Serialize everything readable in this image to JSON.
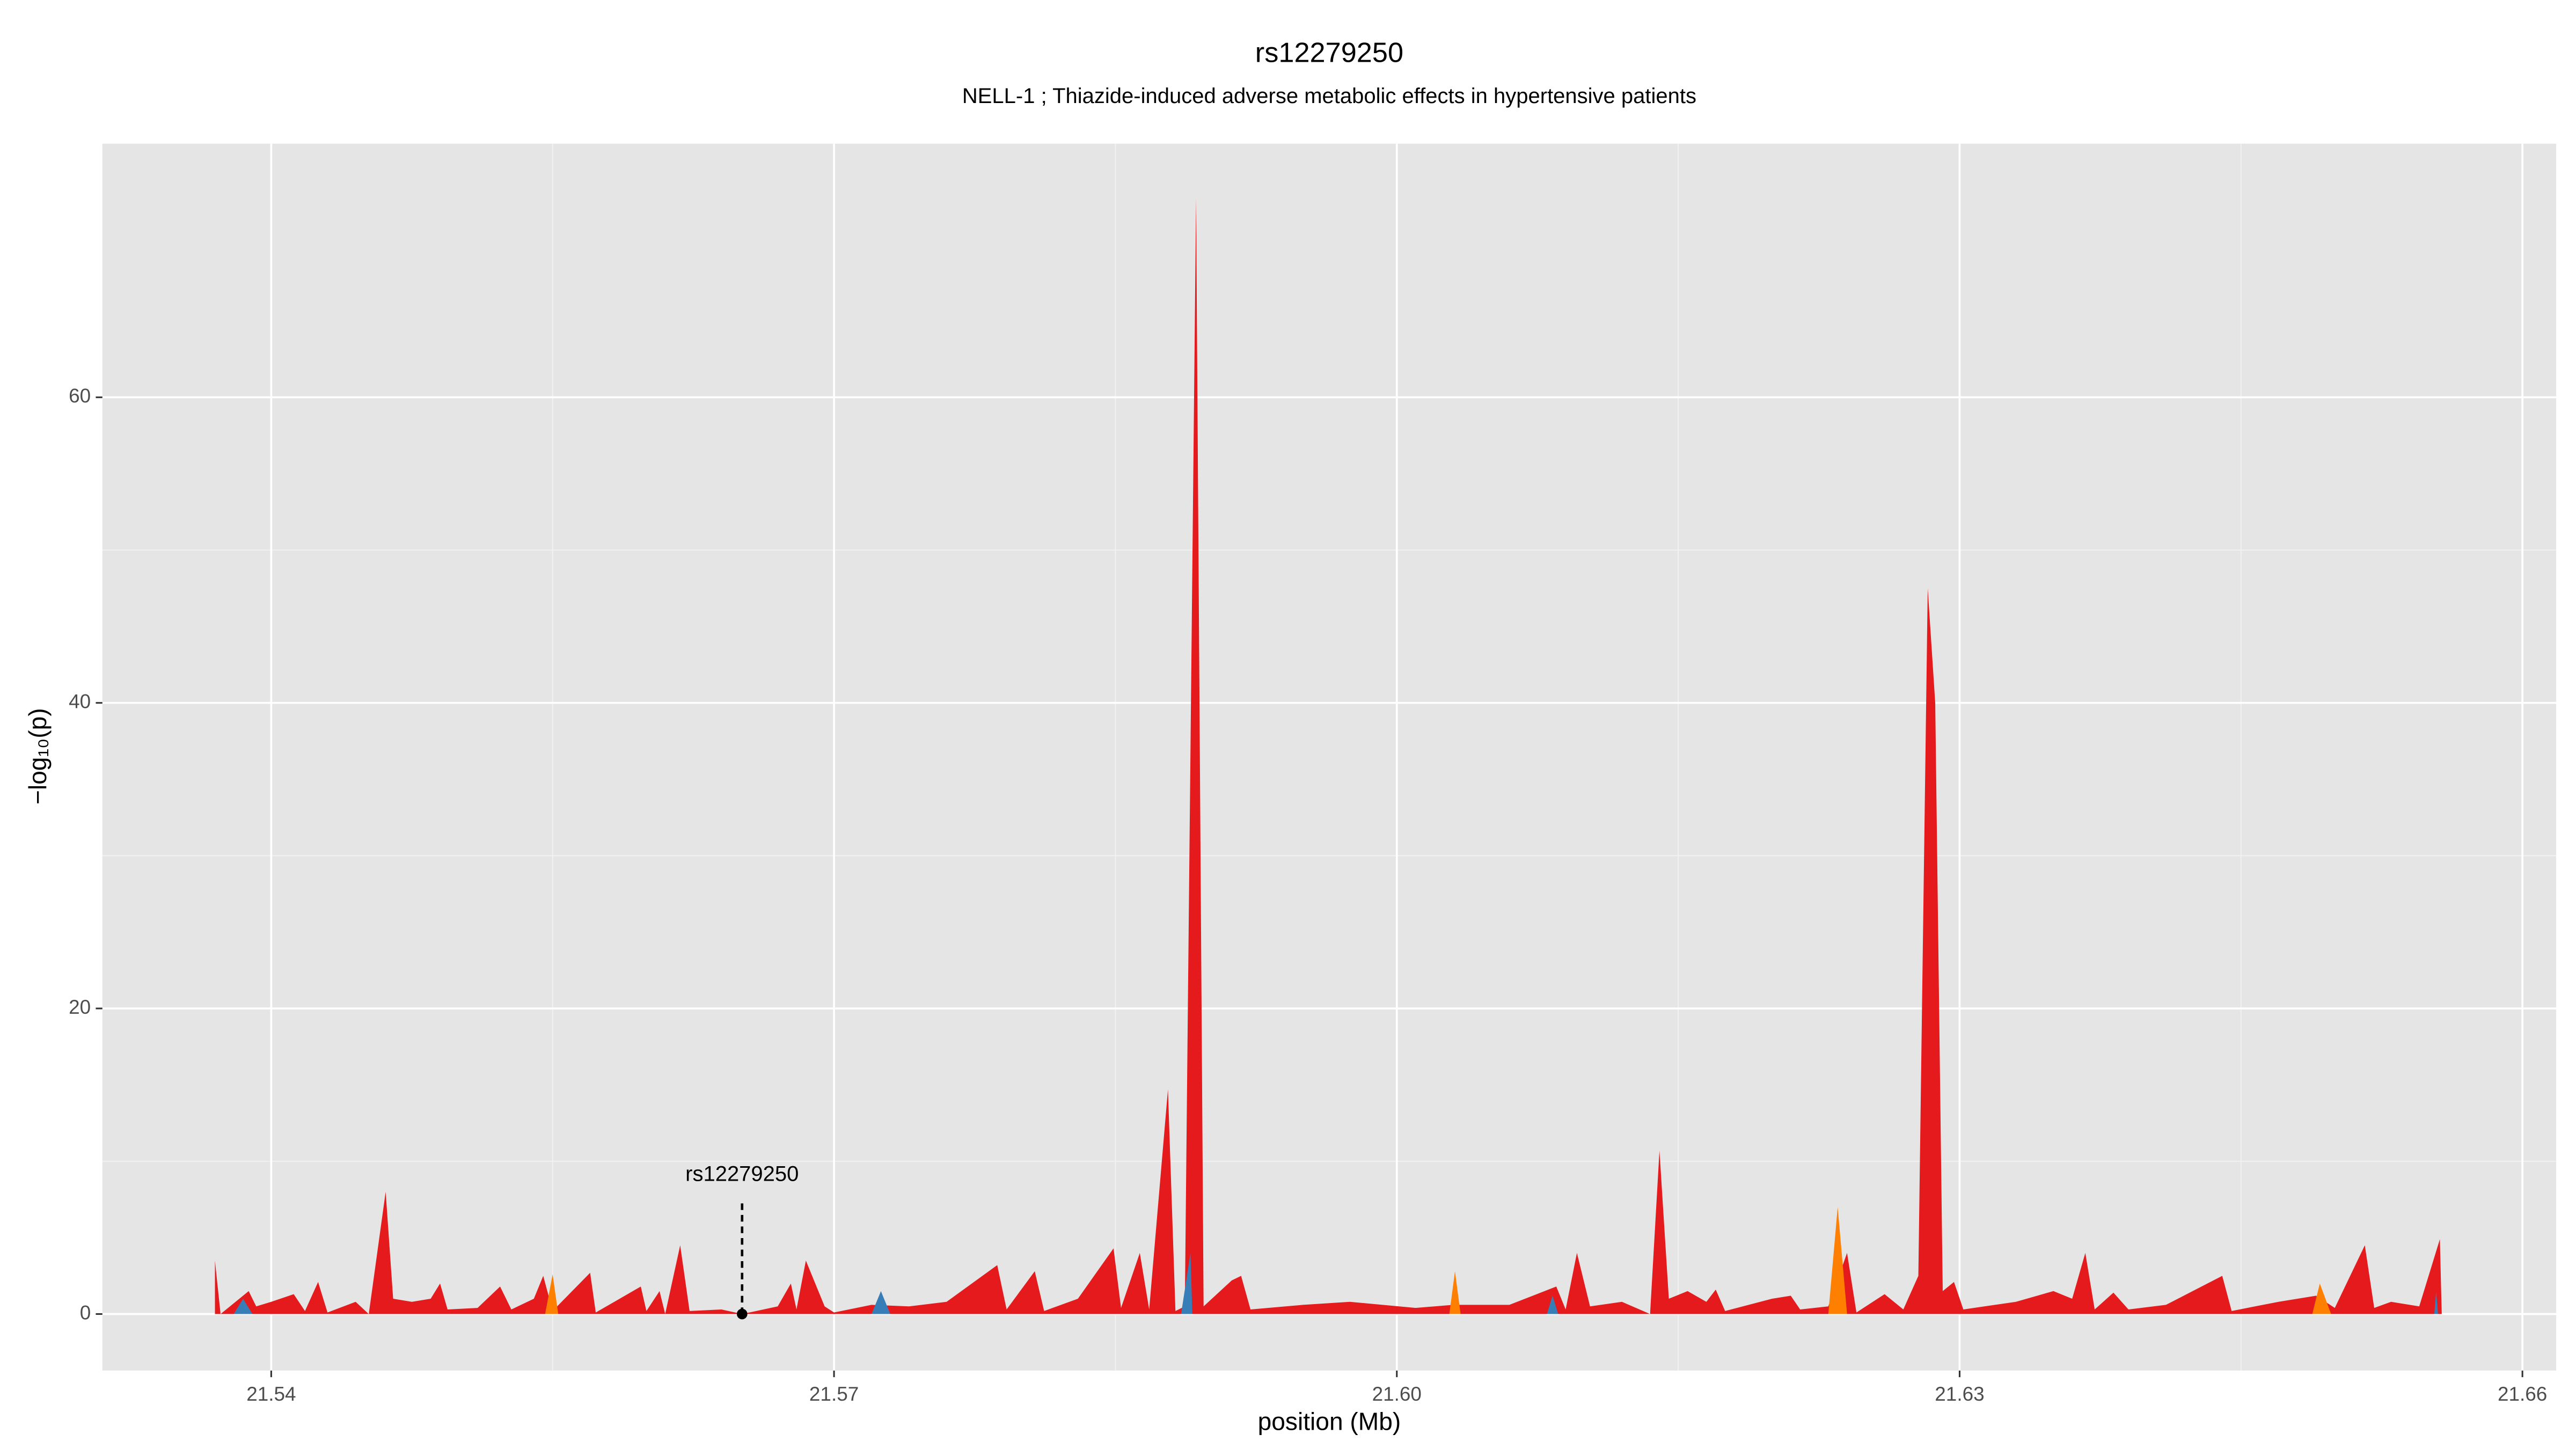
{
  "chart_data": {
    "type": "area",
    "title": "rs12279250",
    "subtitle": "NELL-1 ; Thiazide-induced adverse metabolic effects in hypertensive patients",
    "x_label": "position (Mb)",
    "y_label": "−log₁₀(p)",
    "xlim": [
      21.531,
      21.6618
    ],
    "ylim": [
      -3.7,
      76.6
    ],
    "xticks": [
      21.54,
      21.57,
      {
        "value": 21.6,
        "label": "21.60"
      },
      21.63,
      21.66
    ],
    "yticks": [
      0,
      20,
      40,
      60
    ],
    "grid": true,
    "series": [
      {
        "color": "#e41a1c",
        "x": [
          21.537,
          21.5373,
          21.5388,
          21.5392,
          21.54,
          21.5412,
          21.5418,
          21.5425,
          21.543,
          21.5445,
          21.5452,
          21.5461,
          21.5465,
          21.5475,
          21.5485,
          21.549,
          21.5494,
          21.551,
          21.5522,
          21.5528,
          21.554,
          21.5545,
          21.555,
          21.557,
          21.5573,
          21.5597,
          21.56,
          21.5607,
          21.561,
          21.5618,
          21.5623,
          21.564,
          21.5651,
          21.567,
          21.5677,
          21.568,
          21.5685,
          21.5695,
          21.57,
          21.572,
          21.574,
          21.576,
          21.5787,
          21.5792,
          21.5807,
          21.5812,
          21.583,
          21.5849,
          21.5853,
          21.5863,
          21.5868,
          21.5878,
          21.5882,
          21.5887,
          21.5893,
          21.5897,
          21.5912,
          21.5917,
          21.5922,
          21.595,
          21.5975,
          21.601,
          21.603,
          21.606,
          21.6085,
          21.609,
          21.6096,
          21.6103,
          21.612,
          21.6135,
          21.614,
          21.6145,
          21.6155,
          21.6165,
          21.617,
          21.6175,
          21.62,
          21.621,
          21.6215,
          21.623,
          21.624,
          21.6245,
          21.626,
          21.627,
          21.6278,
          21.6283,
          21.6287,
          21.6291,
          21.6297,
          21.6302,
          21.633,
          21.635,
          21.636,
          21.6367,
          21.6372,
          21.6382,
          21.639,
          21.641,
          21.644,
          21.6445,
          21.647,
          21.649,
          21.65,
          21.6516,
          21.6521,
          21.653,
          21.6545,
          21.6556,
          21.6557
        ],
        "values": [
          3.5,
          0,
          1.5,
          0.5,
          0.8,
          1.3,
          0.2,
          2.1,
          0.1,
          0.8,
          0,
          8.0,
          1.0,
          0.8,
          1.0,
          2.0,
          0.3,
          0.4,
          1.8,
          0.3,
          1.0,
          2.5,
          0.2,
          2.7,
          0.1,
          1.8,
          0.2,
          1.5,
          0,
          4.5,
          0.2,
          0.3,
          0,
          0.5,
          2.0,
          0.3,
          3.5,
          0.5,
          0.1,
          0.6,
          0.5,
          0.8,
          3.2,
          0.3,
          2.8,
          0.2,
          1.0,
          4.3,
          0.4,
          4.0,
          0.3,
          14.7,
          0.2,
          0.5,
          73,
          0.5,
          2.2,
          2.5,
          0.3,
          0.6,
          0.8,
          0.4,
          0.6,
          0.6,
          1.8,
          0.3,
          4.0,
          0.5,
          0.8,
          0,
          10.7,
          1.0,
          1.5,
          0.8,
          1.6,
          0.2,
          1.0,
          1.2,
          0.3,
          0.5,
          4.0,
          0.1,
          1.3,
          0.3,
          2.5,
          47.5,
          40,
          1.5,
          2.1,
          0.3,
          0.8,
          1.5,
          1.0,
          4.0,
          0.3,
          1.4,
          0.3,
          0.6,
          2.5,
          0.2,
          0.8,
          1.2,
          0.4,
          4.5,
          0.4,
          0.8,
          0.5,
          4.9,
          0
        ]
      },
      {
        "color": "#377eb8",
        "x": [
          21.538,
          21.5385,
          21.539,
          21.572,
          21.5725,
          21.573,
          21.5885,
          21.589,
          21.5891,
          21.608,
          21.6083,
          21.6086,
          21.6553,
          21.6554,
          21.6555
        ],
        "values": [
          0,
          1.0,
          0,
          0,
          1.5,
          0,
          0,
          4.0,
          0,
          0,
          1.2,
          0,
          0,
          1.5,
          0
        ]
      },
      {
        "color": "#ff7f00",
        "x": [
          21.5546,
          21.555,
          21.5553,
          21.6028,
          21.6031,
          21.6034,
          21.623,
          21.6235,
          21.624,
          21.6488,
          21.6492,
          21.6498
        ],
        "values": [
          0,
          2.6,
          0,
          0,
          2.8,
          0,
          0,
          7.0,
          0,
          0,
          2.0,
          0
        ]
      }
    ],
    "annotation": {
      "text": "rs12279250",
      "x": 21.5651,
      "y": 0
    }
  }
}
